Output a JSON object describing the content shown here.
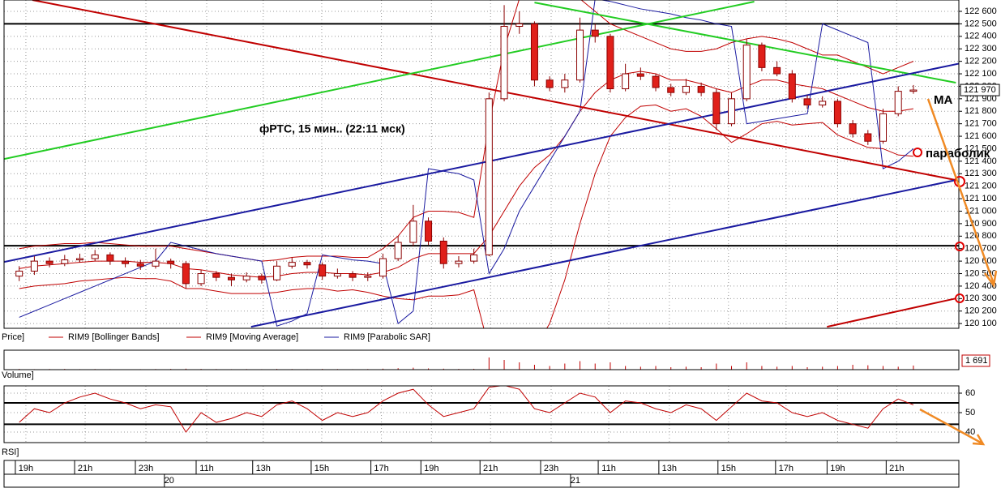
{
  "chart_data": {
    "type": "candlestick",
    "title": "фРТС,  15 мин.. (22:11 мск)",
    "annotations": [
      "MA",
      "параболик"
    ],
    "panel_label": "Price]",
    "xlim": [
      -1,
      62
    ],
    "xticks": [
      {
        "value": 0.44,
        "label": "19h"
      },
      {
        "value": 4.35,
        "label": "21h"
      },
      {
        "value": 8.36,
        "label": "23h"
      },
      {
        "value": 12.37,
        "label": "11h"
      },
      {
        "value": 16.1,
        "label": "13h"
      },
      {
        "value": 19.96,
        "label": "15h"
      },
      {
        "value": 23.9,
        "label": "17h"
      },
      {
        "value": 27.2,
        "label": "19h"
      },
      {
        "value": 31.1,
        "label": "21h"
      },
      {
        "value": 35.1,
        "label": "23h"
      },
      {
        "value": 38.9,
        "label": "11h"
      },
      {
        "value": 42.9,
        "label": "13h"
      },
      {
        "value": 46.8,
        "label": "15h"
      },
      {
        "value": 50.6,
        "label": "17h"
      },
      {
        "value": 54,
        "label": "19h"
      },
      {
        "value": 57.9,
        "label": "21h"
      }
    ],
    "date_ticks": [
      {
        "value": 9.9,
        "label": "20"
      },
      {
        "value": 36.7,
        "label": "21"
      }
    ],
    "ylim": [
      120062,
      122691
    ],
    "yticks": [
      {
        "value": 120100,
        "label": "120 100"
      },
      {
        "value": 120200,
        "label": "120 200"
      },
      {
        "value": 120300,
        "label": "120 300"
      },
      {
        "value": 120400,
        "label": "120 400"
      },
      {
        "value": 120500,
        "label": "120 500"
      },
      {
        "value": 120600,
        "label": "120 600"
      },
      {
        "value": 120700,
        "label": "120 700"
      },
      {
        "value": 120800,
        "label": "120 800"
      },
      {
        "value": 120900,
        "label": "120 900"
      },
      {
        "value": 121000,
        "label": "121 000"
      },
      {
        "value": 121100,
        "label": "121 100"
      },
      {
        "value": 121200,
        "label": "121 200"
      },
      {
        "value": 121300,
        "label": "121 300"
      },
      {
        "value": 121400,
        "label": "121 400"
      },
      {
        "value": 121500,
        "label": "121 500"
      },
      {
        "value": 121600,
        "label": "121 600"
      },
      {
        "value": 121700,
        "label": "121 700"
      },
      {
        "value": 121800,
        "label": "121 800"
      },
      {
        "value": 121900,
        "label": "121 900"
      },
      {
        "value": 122000,
        "label": "122 000"
      },
      {
        "value": 122100,
        "label": "122 100"
      },
      {
        "value": 122200,
        "label": "122 200"
      },
      {
        "value": 122300,
        "label": "122 300"
      },
      {
        "value": 122400,
        "label": "122 400"
      },
      {
        "value": 122500,
        "label": "122 500"
      },
      {
        "value": 122600,
        "label": "122 600"
      }
    ],
    "grid": true,
    "up_color": "#ffffff",
    "down_color": "#e0201a",
    "wick_color": "#8b0000",
    "ohlc": [
      [
        120480,
        120560,
        120440,
        120520
      ],
      [
        120520,
        120640,
        120490,
        120600
      ],
      [
        120600,
        120630,
        120550,
        120580
      ],
      [
        120580,
        120650,
        120560,
        120610
      ],
      [
        120610,
        120660,
        120590,
        120620
      ],
      [
        120620,
        120690,
        120600,
        120650
      ],
      [
        120650,
        120670,
        120570,
        120600
      ],
      [
        120600,
        120630,
        120550,
        120580
      ],
      [
        120580,
        120610,
        120530,
        120560
      ],
      [
        120560,
        120700,
        120540,
        120600
      ],
      [
        120600,
        120620,
        120540,
        120580
      ],
      [
        120580,
        120600,
        120380,
        120420
      ],
      [
        120420,
        120530,
        120400,
        120500
      ],
      [
        120500,
        120520,
        120440,
        120470
      ],
      [
        120470,
        120500,
        120400,
        120450
      ],
      [
        120450,
        120510,
        120430,
        120480
      ],
      [
        120480,
        120500,
        120420,
        120450
      ],
      [
        120450,
        120600,
        120440,
        120560
      ],
      [
        120560,
        120630,
        120540,
        120590
      ],
      [
        120590,
        120610,
        120540,
        120570
      ],
      [
        120570,
        120590,
        120450,
        120480
      ],
      [
        120480,
        120540,
        120460,
        120500
      ],
      [
        120500,
        120520,
        120440,
        120470
      ],
      [
        120470,
        120510,
        120440,
        120480
      ],
      [
        120480,
        120660,
        120460,
        120620
      ],
      [
        120620,
        120800,
        120600,
        120750
      ],
      [
        120750,
        121050,
        120720,
        120920
      ],
      [
        120920,
        120950,
        120730,
        120760
      ],
      [
        120760,
        120790,
        120540,
        120580
      ],
      [
        120580,
        120640,
        120550,
        120600
      ],
      [
        120600,
        120700,
        120580,
        120650
      ],
      [
        120650,
        121950,
        120640,
        121900
      ],
      [
        121900,
        122650,
        121880,
        122480
      ],
      [
        122480,
        122600,
        122420,
        122500
      ],
      [
        122500,
        122520,
        122000,
        122050
      ],
      [
        122050,
        122080,
        121960,
        121990
      ],
      [
        121990,
        122100,
        121950,
        122050
      ],
      [
        122050,
        122550,
        122030,
        122450
      ],
      [
        122450,
        122500,
        122350,
        122400
      ],
      [
        122400,
        122420,
        121950,
        121980
      ],
      [
        121980,
        122180,
        121960,
        122100
      ],
      [
        122100,
        122150,
        122050,
        122080
      ],
      [
        122080,
        122100,
        121960,
        121990
      ],
      [
        121990,
        122020,
        121920,
        121950
      ],
      [
        121950,
        122060,
        121930,
        122000
      ],
      [
        122000,
        122030,
        121920,
        121950
      ],
      [
        121950,
        121980,
        121650,
        121700
      ],
      [
        121700,
        121950,
        121680,
        121900
      ],
      [
        121900,
        122380,
        121880,
        122330
      ],
      [
        122330,
        122350,
        122120,
        122150
      ],
      [
        122150,
        122200,
        122080,
        122100
      ],
      [
        122100,
        122130,
        121870,
        121900
      ],
      [
        121900,
        121930,
        121820,
        121850
      ],
      [
        121850,
        121920,
        121830,
        121880
      ],
      [
        121880,
        121900,
        121670,
        121700
      ],
      [
        121700,
        121730,
        121590,
        121620
      ],
      [
        121620,
        121650,
        121530,
        121560
      ],
      [
        121560,
        121820,
        121540,
        121780
      ],
      [
        121780,
        122000,
        121760,
        121960
      ],
      [
        121960,
        122010,
        121940,
        121970
      ]
    ],
    "last_price": {
      "value": 121970,
      "label": "121 970"
    },
    "series": [
      {
        "name": "RIM9 [Bollinger Bands]",
        "color": "#c00000",
        "upper": [
          120700,
          120720,
          120730,
          120740,
          120740,
          120750,
          120740,
          120730,
          120720,
          120720,
          120720,
          120700,
          120680,
          120660,
          120640,
          120620,
          120600,
          120610,
          120630,
          120640,
          120640,
          120640,
          120630,
          120630,
          120700,
          120800,
          120950,
          121000,
          121000,
          120990,
          120950,
          121700,
          122300,
          122700,
          122800,
          122800,
          122750,
          122700,
          122600,
          122500,
          122450,
          122400,
          122350,
          122300,
          122280,
          122280,
          122300,
          122350,
          122380,
          122400,
          122380,
          122350,
          122300,
          122250,
          122250,
          122200,
          122150,
          122100,
          122150,
          122200
        ],
        "lower": [
          120380,
          120400,
          120410,
          120420,
          120440,
          120450,
          120460,
          120470,
          120460,
          120460,
          120440,
          120380,
          120380,
          120360,
          120340,
          120340,
          120340,
          120350,
          120370,
          120380,
          120380,
          120360,
          120370,
          120350,
          120320,
          120300,
          120290,
          120320,
          120320,
          120330,
          120370,
          119900,
          119700,
          119700,
          119900,
          120100,
          120450,
          120900,
          121300,
          121600,
          121750,
          121840,
          121850,
          121800,
          121820,
          121760,
          121660,
          121550,
          121620,
          121700,
          121720,
          121690,
          121700,
          121710,
          121610,
          121560,
          121510,
          121500,
          121450,
          121440
        ]
      },
      {
        "name": "RIM9 [Moving Average]",
        "color": "#c00000",
        "values": [
          120540,
          120560,
          120570,
          120580,
          120590,
          120600,
          120600,
          120600,
          120590,
          120590,
          120580,
          120540,
          120530,
          120510,
          120490,
          120480,
          120470,
          120480,
          120500,
          120510,
          120510,
          120500,
          120500,
          120490,
          120510,
          120550,
          120620,
          120660,
          120660,
          120660,
          120660,
          120800,
          121000,
          121200,
          121350,
          121450,
          121600,
          121800,
          121950,
          122050,
          122100,
          122120,
          122100,
          122050,
          122050,
          122020,
          121980,
          121950,
          122000,
          122050,
          122050,
          122020,
          122000,
          121980,
          121930,
          121880,
          121830,
          121800,
          121800,
          121820
        ]
      },
      {
        "name": "RIM9 [Parabolic SAR]",
        "color": "#1a1aa0",
        "values": [
          120150,
          120200,
          120250,
          120300,
          120350,
          120400,
          120450,
          120500,
          120550,
          120600,
          120750,
          120720,
          120690,
          120660,
          120640,
          120620,
          120600,
          120080,
          120120,
          120180,
          120650,
          120630,
          120610,
          120600,
          120580,
          120100,
          120200,
          121340,
          121320,
          121300,
          121250,
          120500,
          120700,
          121000,
          121200,
          121400,
          121600,
          121800,
          122700,
          122680,
          122650,
          122620,
          122600,
          122580,
          122550,
          122530,
          122500,
          122480,
          121700,
          121720,
          121740,
          121760,
          121780,
          122500,
          122450,
          122400,
          122350,
          121340,
          121400,
          121500
        ]
      }
    ],
    "hlines": [
      122500,
      120723
    ],
    "trendlines": [
      {
        "color": "#c00000",
        "x": [
          0.87,
          61.8
        ],
        "y": [
          122691,
          121249
        ]
      },
      {
        "color": "#c00000",
        "x": [
          53.3,
          61.8
        ],
        "y": [
          120074,
          120301
        ]
      },
      {
        "color": "#22cc22",
        "x": [
          -1,
          48.5
        ],
        "y": [
          121418,
          122678
        ]
      },
      {
        "color": "#22cc22",
        "x": [
          34,
          61.8
        ],
        "y": [
          122671,
          122029
        ]
      },
      {
        "color": "#1a1aa0",
        "x": [
          -1,
          62.1
        ],
        "y": [
          120593,
          122184
        ]
      },
      {
        "color": "#1a1aa0",
        "x": [
          15.3,
          61.8
        ],
        "y": [
          120074,
          121249
        ]
      }
    ],
    "volume": {
      "label": "Volume]",
      "color": "#c00000",
      "ylim": [
        0,
        8000
      ],
      "values": [
        300,
        200,
        250,
        300,
        200,
        250,
        200,
        150,
        200,
        250,
        300,
        400,
        300,
        250,
        200,
        250,
        200,
        300,
        250,
        200,
        300,
        250,
        200,
        250,
        400,
        600,
        800,
        500,
        400,
        300,
        350,
        5000,
        4000,
        3000,
        2000,
        1500,
        2500,
        3500,
        2500,
        3000,
        1500,
        1200,
        1500,
        1000,
        1200,
        1000,
        2500,
        1500,
        3000,
        1500,
        1200,
        1500,
        1000,
        1200,
        1500,
        2000,
        1800,
        1500,
        1200,
        1691
      ],
      "last": {
        "value": 1691,
        "label": "1 691"
      }
    },
    "rsi": {
      "label": "RSI]",
      "color": "#c00000",
      "ylim": [
        34.6,
        63.75
      ],
      "yticks": [
        60,
        50,
        40
      ],
      "levels": [
        55,
        44
      ],
      "values": [
        45,
        52,
        50,
        55,
        58,
        60,
        57,
        55,
        52,
        54,
        53,
        40,
        50,
        45,
        47,
        50,
        48,
        54,
        56,
        52,
        46,
        50,
        48,
        50,
        56,
        60,
        62,
        54,
        48,
        50,
        52,
        63,
        64,
        62,
        52,
        50,
        55,
        60,
        58,
        50,
        56,
        55,
        52,
        50,
        54,
        52,
        46,
        53,
        60,
        56,
        55,
        50,
        48,
        50,
        46,
        44,
        42,
        52,
        57,
        54
      ]
    }
  }
}
